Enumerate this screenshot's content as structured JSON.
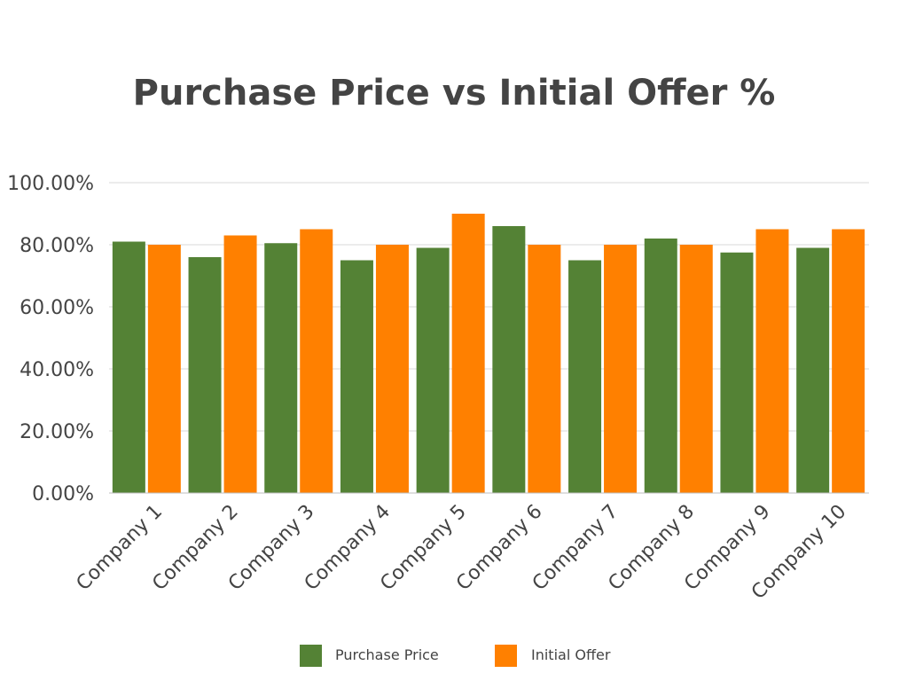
{
  "chart_data": {
    "type": "bar",
    "title": "Purchase Price vs Initial Offer %",
    "xlabel": "",
    "ylabel": "",
    "categories": [
      "Company 1",
      "Company 2",
      "Company 3",
      "Company 4",
      "Company 5",
      "Company 6",
      "Company 7",
      "Company 8",
      "Company 9",
      "Company 10"
    ],
    "series": [
      {
        "name": "Purchase Price",
        "color": "#548235",
        "values": [
          81,
          76,
          80.5,
          75,
          79,
          86,
          75,
          82,
          77.5,
          79
        ]
      },
      {
        "name": "Initial Offer",
        "color": "#ff8000",
        "values": [
          80,
          83,
          85,
          80,
          90,
          80,
          80,
          80,
          85,
          85
        ]
      }
    ],
    "ylim": [
      0,
      100
    ],
    "yticks": [
      0,
      20,
      40,
      60,
      80,
      100
    ],
    "ytick_labels": [
      "0.00%",
      "20.00%",
      "40.00%",
      "60.00%",
      "80.00%",
      "100.00%"
    ],
    "grid": true,
    "legend": "bottom"
  }
}
